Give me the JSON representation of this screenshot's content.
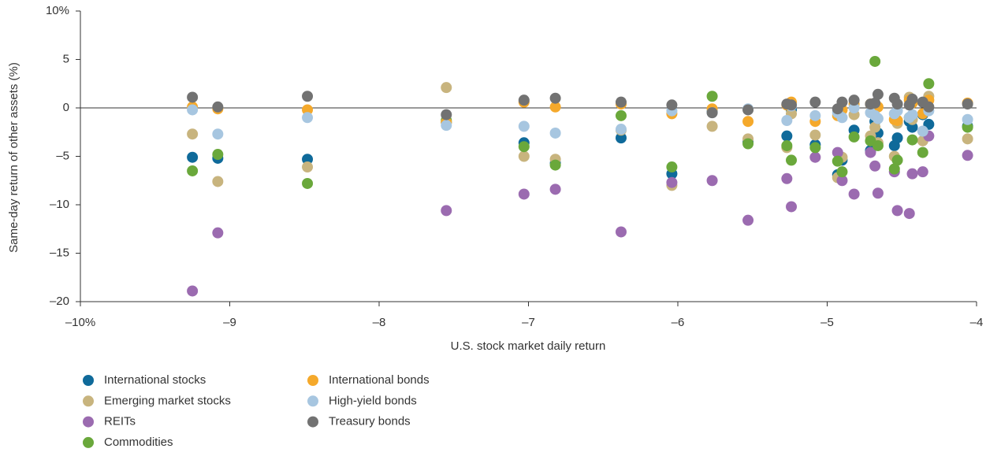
{
  "chart_data": {
    "type": "scatter",
    "ylabel": "Same-day return of other assets (%)",
    "xlabel": "U.S. stock market daily return",
    "xlim": [
      -10,
      -4
    ],
    "xticks": [
      {
        "value": -10,
        "label": "–10%"
      },
      {
        "value": -9,
        "label": "–9"
      },
      {
        "value": -8,
        "label": "–8"
      },
      {
        "value": -7,
        "label": "–7"
      },
      {
        "value": -6,
        "label": "–6"
      },
      {
        "value": -5,
        "label": "–5"
      },
      {
        "value": -4,
        "label": "–4"
      }
    ],
    "ylim": [
      -20,
      10
    ],
    "yticks": [
      {
        "value": -20,
        "label": "–20"
      },
      {
        "value": -15,
        "label": "–15"
      },
      {
        "value": -10,
        "label": "–10"
      },
      {
        "value": -5,
        "label": "–5"
      },
      0,
      5,
      {
        "value": 10,
        "label": "10%"
      }
    ],
    "x": [
      -9.25,
      -9.08,
      -8.48,
      -7.55,
      -7.03,
      -6.82,
      -6.38,
      -6.04,
      -5.77,
      -5.53,
      -5.27,
      -5.24,
      -5.08,
      -4.93,
      -4.9,
      -4.82,
      -4.71,
      -4.68,
      -4.66,
      -4.55,
      -4.53,
      -4.45,
      -4.43,
      -4.36,
      -4.32,
      -4.06
    ],
    "series": [
      {
        "name": "International stocks",
        "color": "#0f6a9a",
        "values": [
          -5.1,
          -5.2,
          -5.3,
          -1.5,
          -3.6,
          -5.7,
          -3.1,
          -6.8,
          -0.4,
          -3.5,
          -2.9,
          -0.2,
          -3.8,
          -6.9,
          -5.4,
          -2.3,
          -4.4,
          -1.4,
          -2.6,
          -3.9,
          -3.1,
          -1.4,
          -2.0,
          -0.7,
          -1.7,
          -1.9
        ]
      },
      {
        "name": "Emerging market stocks",
        "color": "#c8b47e",
        "values": [
          -2.7,
          -7.6,
          -6.1,
          2.1,
          -5.0,
          -5.3,
          -2.3,
          -8.0,
          -1.9,
          -3.2,
          -4.1,
          -0.6,
          -2.8,
          -7.2,
          -5.1,
          -0.7,
          -2.9,
          -2.0,
          -3.6,
          -5.0,
          -1.6,
          1.1,
          -1.2,
          -3.4,
          1.2,
          -3.2
        ]
      },
      {
        "name": "REITs",
        "color": "#9b6bb0",
        "values": [
          -18.9,
          -12.9,
          null,
          -10.6,
          -8.9,
          -8.4,
          -12.8,
          -7.7,
          -7.5,
          -11.6,
          -7.3,
          -10.2,
          -5.1,
          -4.6,
          -7.5,
          -8.9,
          -4.6,
          -6.0,
          -8.8,
          -6.6,
          -10.6,
          -10.9,
          -6.8,
          -6.6,
          -2.9,
          -4.9
        ]
      },
      {
        "name": "Commodities",
        "color": "#6aa83b",
        "values": [
          -6.5,
          -4.8,
          -7.8,
          -1.3,
          -4.0,
          -5.9,
          -0.8,
          -6.1,
          1.2,
          -3.7,
          -3.9,
          -5.4,
          -4.1,
          -5.5,
          -6.6,
          -3.0,
          -3.4,
          4.8,
          -3.9,
          -6.3,
          -5.4,
          -1.0,
          -3.3,
          -4.6,
          2.5,
          -2.0
        ]
      },
      {
        "name": "International bonds",
        "color": "#f5a92b",
        "values": [
          0.1,
          -0.1,
          -0.2,
          -1.5,
          0.6,
          0.1,
          0.4,
          -0.6,
          -0.1,
          -1.4,
          0.3,
          0.6,
          -1.4,
          -0.8,
          -0.2,
          0.4,
          0.4,
          0.2,
          0.1,
          -1.2,
          -1.3,
          0.8,
          0.5,
          -0.6,
          0.8,
          0.5
        ]
      },
      {
        "name": "High-yield bonds",
        "color": "#a7c6e0",
        "values": [
          -0.2,
          -2.7,
          -1.0,
          -1.8,
          -1.9,
          -2.6,
          -2.2,
          -0.3,
          -0.5,
          -0.1,
          -1.3,
          0.2,
          -0.8,
          -0.5,
          -1.0,
          0.0,
          -0.5,
          -0.8,
          -1.1,
          -0.6,
          -0.3,
          -1.0,
          -0.7,
          -2.4,
          -0.3,
          -1.2
        ]
      },
      {
        "name": "Treasury bonds",
        "color": "#727272",
        "values": [
          1.1,
          0.1,
          1.2,
          -0.7,
          0.8,
          1.0,
          0.6,
          0.3,
          -0.5,
          -0.2,
          0.4,
          0.3,
          0.6,
          -0.1,
          0.6,
          0.8,
          0.4,
          0.5,
          1.4,
          1.0,
          0.4,
          0.3,
          0.9,
          0.6,
          0.1,
          0.4
        ]
      }
    ]
  }
}
